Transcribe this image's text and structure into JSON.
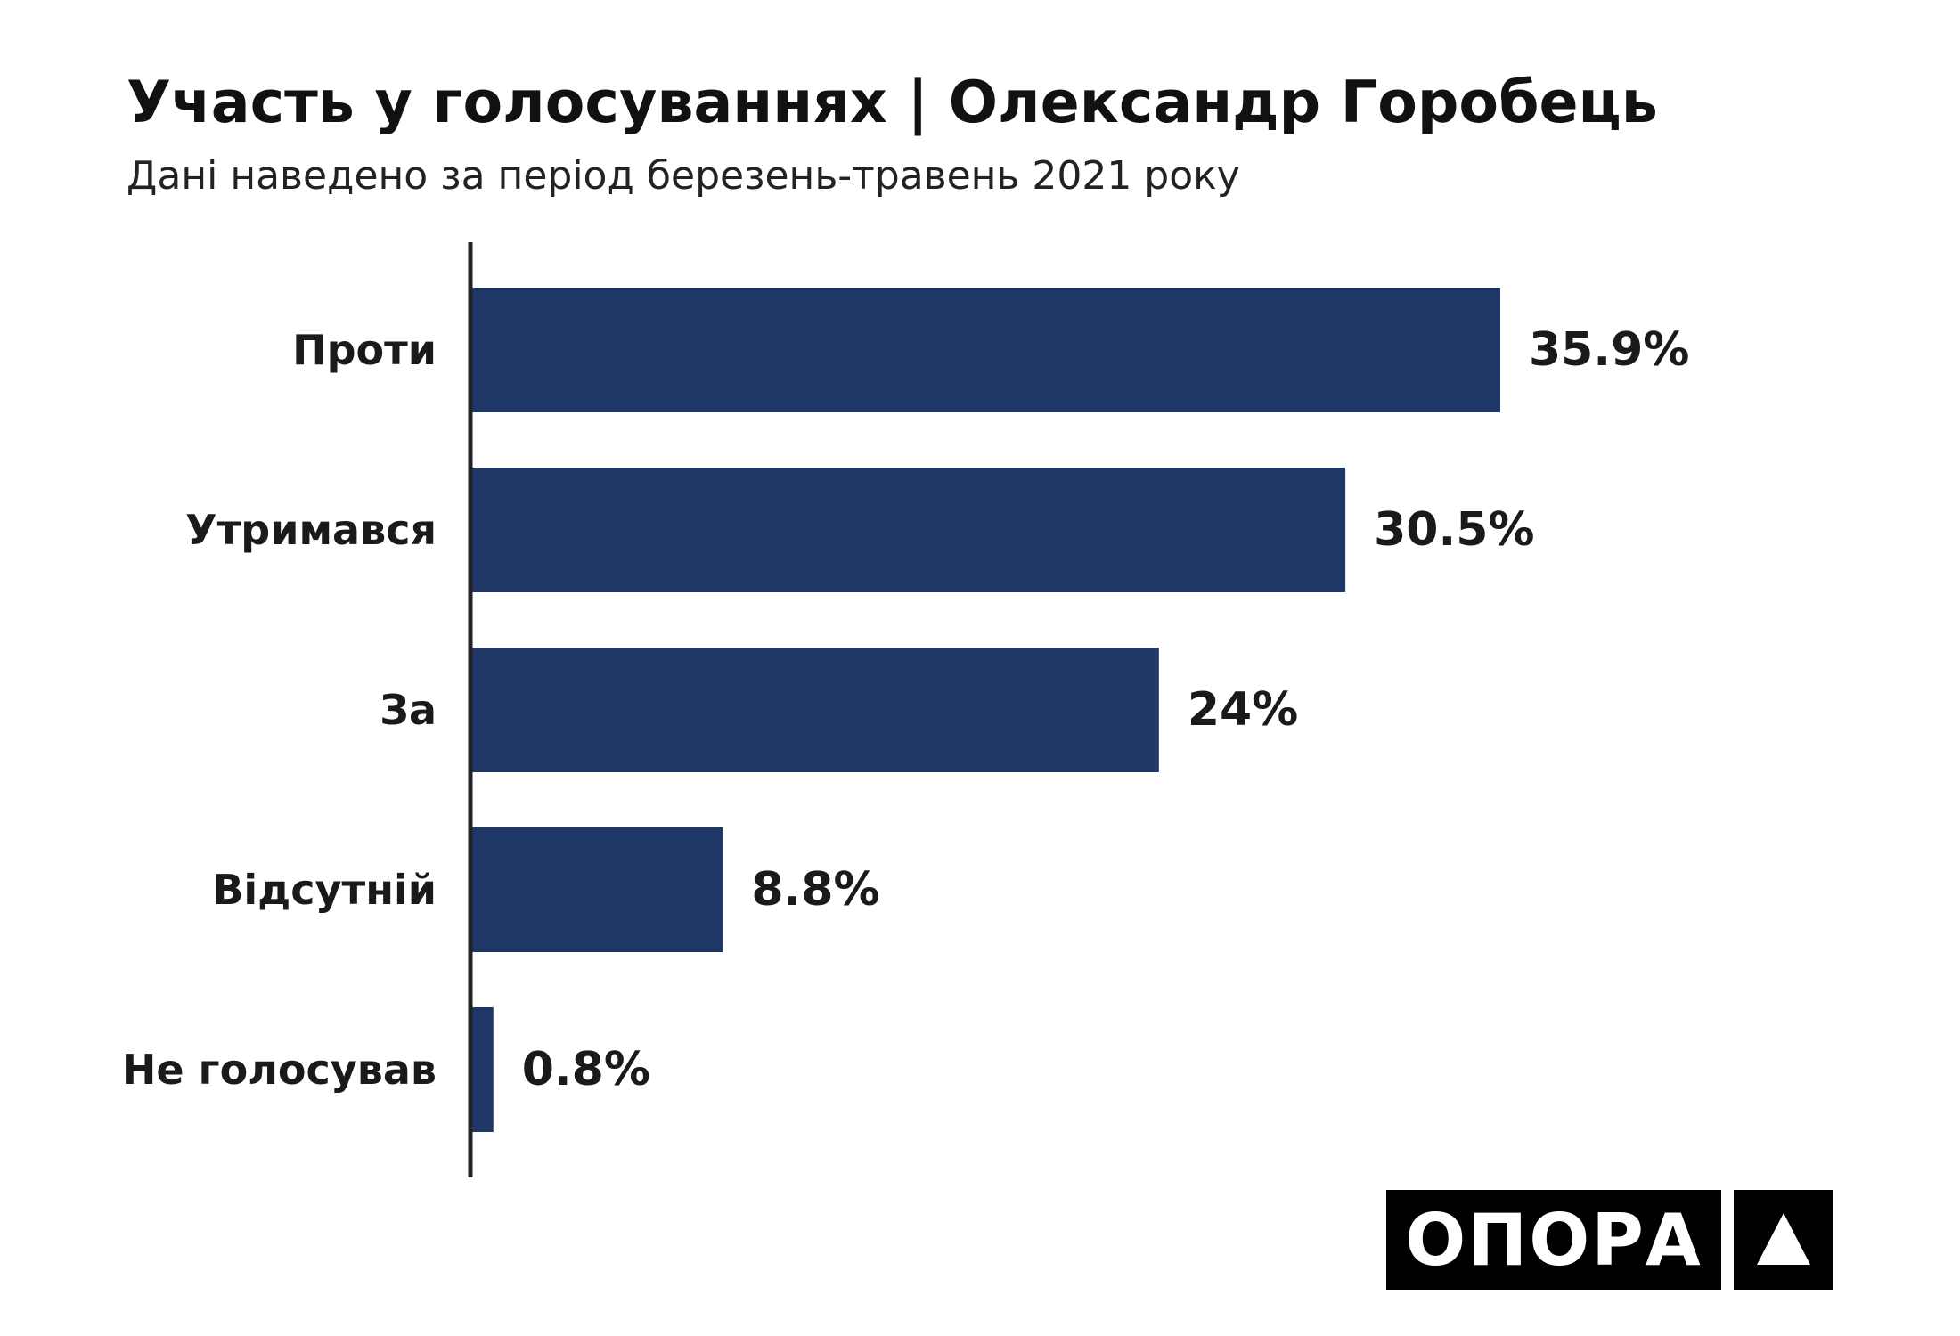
{
  "header": {
    "title": "Участь у голосуваннях | Олександр Горобець",
    "subtitle": "Дані наведено за період березень-травень 2021 року"
  },
  "logo": {
    "text": "ОПОРА"
  },
  "colors": {
    "bar": "#1f3766",
    "text": "#1a1a1a",
    "axis": "#222222"
  },
  "chart_data": {
    "type": "bar",
    "orientation": "horizontal",
    "title": "Участь у голосуваннях | Олександр Горобець",
    "subtitle": "Дані наведено за період березень-травень 2021 року",
    "categories": [
      "Проти",
      "Утримався",
      "За",
      "Відсутній",
      "Не голосував"
    ],
    "values": [
      35.9,
      30.5,
      24,
      8.8,
      0.8
    ],
    "value_labels": [
      "35.9%",
      "30.5%",
      "24%",
      "8.8%",
      "0.8%"
    ],
    "xlim": [
      0,
      40
    ],
    "grid": false,
    "legend": "none"
  }
}
